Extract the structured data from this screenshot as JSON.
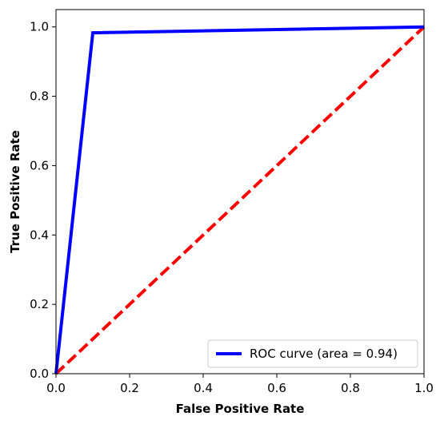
{
  "chart_data": {
    "type": "line",
    "xlabel": "False Positive Rate",
    "ylabel": "True Positive Rate",
    "xlim": [
      0.0,
      1.0
    ],
    "ylim": [
      0.0,
      1.05
    ],
    "x_ticks": [
      0.0,
      0.2,
      0.4,
      0.6,
      0.8,
      1.0
    ],
    "y_ticks": [
      0.0,
      0.2,
      0.4,
      0.6,
      0.8,
      1.0
    ],
    "x_tick_labels": [
      "0.0",
      "0.2",
      "0.4",
      "0.6",
      "0.8",
      "1.0"
    ],
    "y_tick_labels": [
      "0.0",
      "0.2",
      "0.4",
      "0.6",
      "0.8",
      "1.0"
    ],
    "grid": false,
    "legend_position": "bottom-right",
    "series": [
      {
        "name": "ROC curve (area = 0.94)",
        "color": "#0000ff",
        "style": "solid",
        "x": [
          0.0,
          0.1,
          1.0
        ],
        "y": [
          0.0,
          0.983,
          1.0
        ]
      },
      {
        "color": "#ff0000",
        "style": "dashed",
        "x": [
          0.0,
          1.0
        ],
        "y": [
          0.0,
          1.0
        ]
      }
    ]
  }
}
